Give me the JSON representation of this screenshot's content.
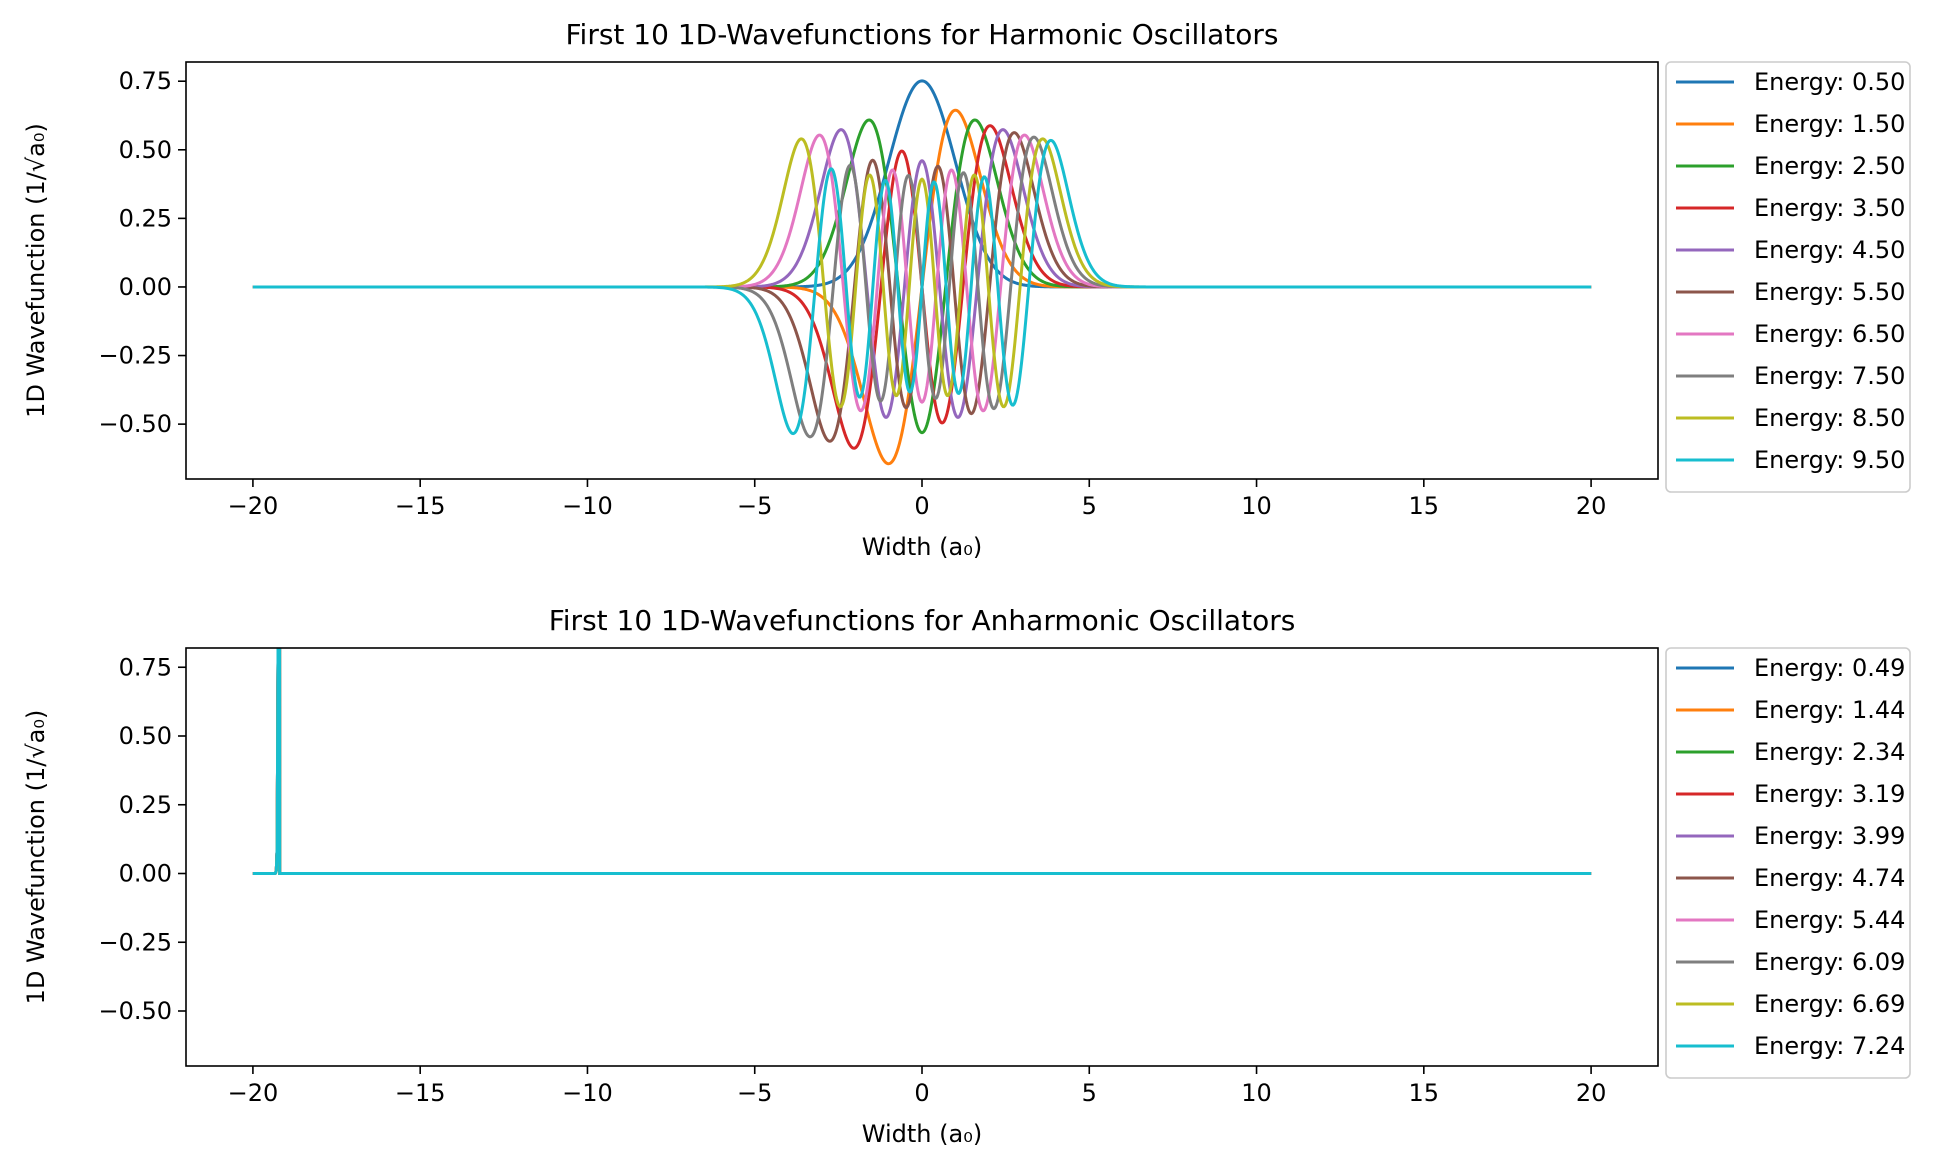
{
  "chart_data": [
    {
      "type": "line",
      "title": "First 10 1D-Wavefunctions for Harmonic Oscillators",
      "xlabel": "Width (a₀)",
      "ylabel": "1D Wavefunction (1/√a₀)",
      "xlim": [
        -22,
        22
      ],
      "ylim": [
        -0.7,
        0.82
      ],
      "xticks": [
        -20,
        -15,
        -10,
        -5,
        0,
        5,
        10,
        15,
        20
      ],
      "xtick_labels": [
        "−20",
        "−15",
        "−10",
        "−5",
        "0",
        "5",
        "10",
        "15",
        "20"
      ],
      "yticks": [
        -0.5,
        -0.25,
        0.0,
        0.25,
        0.5,
        0.75
      ],
      "ytick_labels": [
        "−0.50",
        "−0.25",
        "0.00",
        "0.25",
        "0.50",
        "0.75"
      ],
      "x_range": [
        -20,
        20
      ],
      "grid": false,
      "legend_position": "outside-right",
      "potential": "harmonic",
      "series": [
        {
          "name": "Energy: 0.50",
          "n": 0,
          "energy": 0.5,
          "color": "#1f77b4"
        },
        {
          "name": "Energy: 1.50",
          "n": 1,
          "energy": 1.5,
          "color": "#ff7f0e"
        },
        {
          "name": "Energy: 2.50",
          "n": 2,
          "energy": 2.5,
          "color": "#2ca02c"
        },
        {
          "name": "Energy: 3.50",
          "n": 3,
          "energy": 3.5,
          "color": "#d62728"
        },
        {
          "name": "Energy: 4.50",
          "n": 4,
          "energy": 4.5,
          "color": "#9467bd"
        },
        {
          "name": "Energy: 5.50",
          "n": 5,
          "energy": 5.5,
          "color": "#8c564b"
        },
        {
          "name": "Energy: 6.50",
          "n": 6,
          "energy": 6.5,
          "color": "#e377c2"
        },
        {
          "name": "Energy: 7.50",
          "n": 7,
          "energy": 7.5,
          "color": "#7f7f7f"
        },
        {
          "name": "Energy: 8.50",
          "n": 8,
          "energy": 8.5,
          "color": "#bcbd22"
        },
        {
          "name": "Energy: 9.50",
          "n": 9,
          "energy": 9.5,
          "color": "#17becf"
        }
      ]
    },
    {
      "type": "line",
      "title": "First 10 1D-Wavefunctions for Anharmonic Oscillators",
      "xlabel": "Width (a₀)",
      "ylabel": "1D Wavefunction (1/√a₀)",
      "xlim": [
        -22,
        22
      ],
      "ylim": [
        -0.7,
        0.82
      ],
      "xticks": [
        -20,
        -15,
        -10,
        -5,
        0,
        5,
        10,
        15,
        20
      ],
      "xtick_labels": [
        "−20",
        "−15",
        "−10",
        "−5",
        "0",
        "5",
        "10",
        "15",
        "20"
      ],
      "yticks": [
        -0.5,
        -0.25,
        0.0,
        0.25,
        0.5,
        0.75
      ],
      "ytick_labels": [
        "−0.50",
        "−0.25",
        "0.00",
        "0.25",
        "0.50",
        "0.75"
      ],
      "x_range": [
        -20,
        20
      ],
      "grid": false,
      "legend_position": "outside-right",
      "potential": "anharmonic",
      "series": [
        {
          "name": "Energy: 0.49",
          "n": 0,
          "energy": 0.49,
          "color": "#1f77b4"
        },
        {
          "name": "Energy: 1.44",
          "n": 1,
          "energy": 1.44,
          "color": "#ff7f0e"
        },
        {
          "name": "Energy: 2.34",
          "n": 2,
          "energy": 2.34,
          "color": "#2ca02c"
        },
        {
          "name": "Energy: 3.19",
          "n": 3,
          "energy": 3.19,
          "color": "#d62728"
        },
        {
          "name": "Energy: 3.99",
          "n": 4,
          "energy": 3.99,
          "color": "#9467bd"
        },
        {
          "name": "Energy: 4.74",
          "n": 5,
          "energy": 4.74,
          "color": "#8c564b"
        },
        {
          "name": "Energy: 5.44",
          "n": 6,
          "energy": 5.44,
          "color": "#e377c2"
        },
        {
          "name": "Energy: 6.09",
          "n": 7,
          "energy": 6.09,
          "color": "#7f7f7f"
        },
        {
          "name": "Energy: 6.69",
          "n": 8,
          "energy": 6.69,
          "color": "#bcbd22"
        },
        {
          "name": "Energy: 7.24",
          "n": 9,
          "energy": 7.24,
          "color": "#17becf"
        }
      ]
    }
  ]
}
